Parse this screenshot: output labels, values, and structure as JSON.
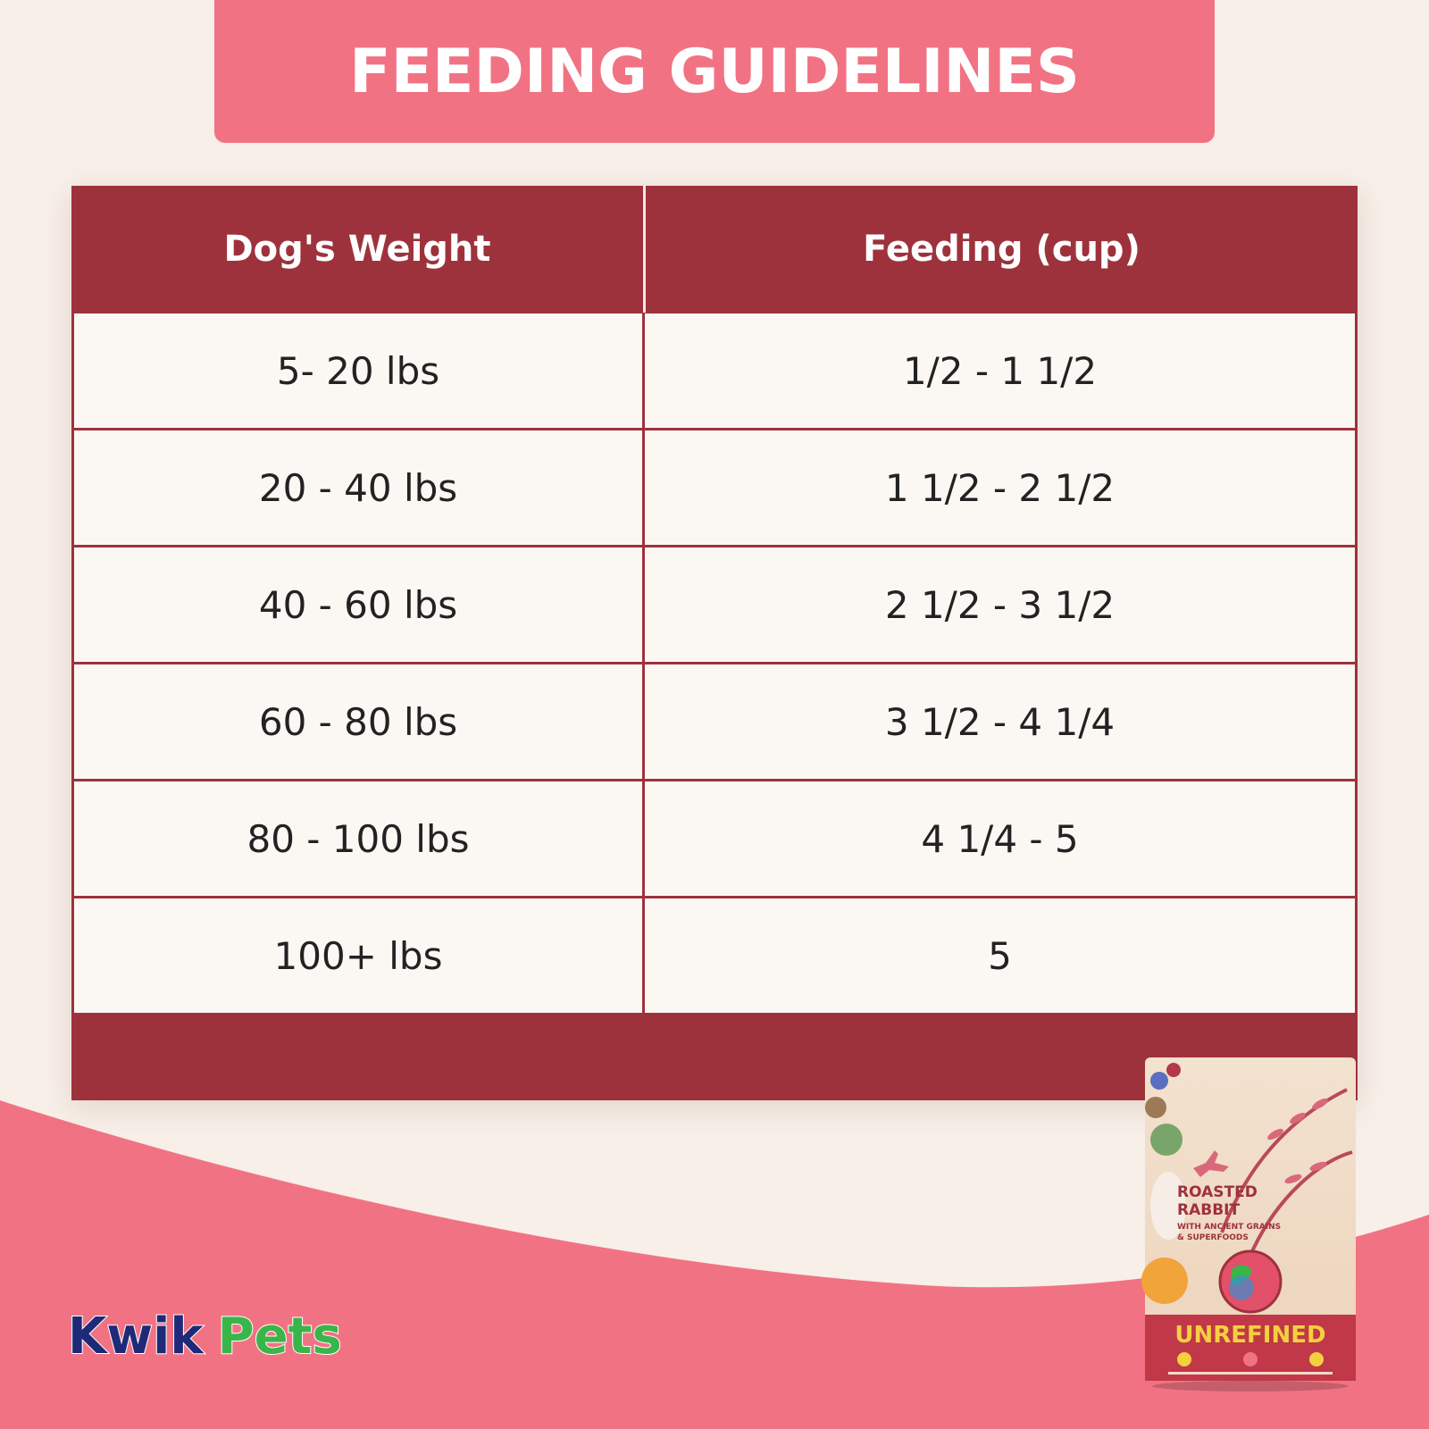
{
  "title": "FEEDING GUIDELINES",
  "table": {
    "headers": [
      "Dog's Weight",
      "Feeding (cup)"
    ],
    "rows": [
      [
        "5- 20 lbs",
        "1/2 - 1 1/2"
      ],
      [
        "20 - 40 lbs",
        "1 1/2 - 2 1/2"
      ],
      [
        "40 - 60 lbs",
        "2 1/2 - 3 1/2"
      ],
      [
        "60 - 80 lbs",
        "3 1/2 - 4 1/4"
      ],
      [
        "80 - 100 lbs",
        "4 1/4 - 5"
      ],
      [
        "100+ lbs",
        "5"
      ]
    ]
  },
  "brand": {
    "word1": "Kwik",
    "word2": "Pets"
  },
  "product": {
    "name_line1": "ROASTED",
    "name_line2": "RABBIT",
    "sub_line1": "WITH ANCIENT GRAINS",
    "sub_line2": "& SUPERFOODS",
    "brand_name": "UNREFINED"
  },
  "colors": {
    "banner": "#f17383",
    "table_header": "#9e323c",
    "cell_bg": "#fbf8f4",
    "page_bg": "#f7efe8",
    "logo_kwik": "#1e2a78",
    "logo_pets": "#3ab54a"
  }
}
